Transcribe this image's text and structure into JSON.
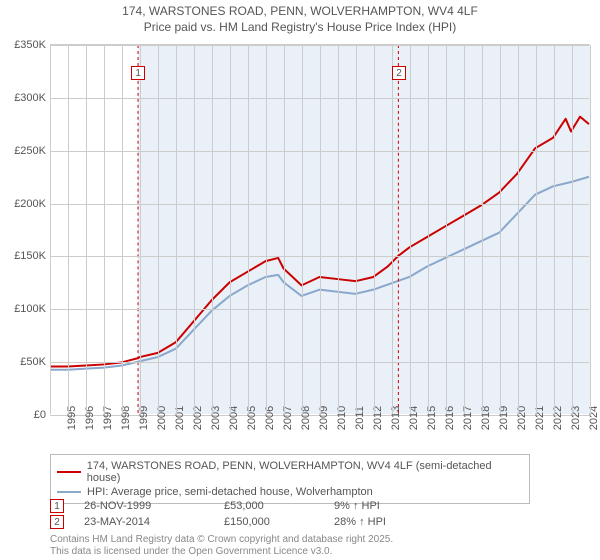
{
  "title_line1": "174, WARSTONES ROAD, PENN, WOLVERHAMPTON, WV4 4LF",
  "title_line2": "Price paid vs. HM Land Registry's House Price Index (HPI)",
  "chart": {
    "type": "line",
    "background_color": "#ffffff",
    "shade_color": "#eaf0f8",
    "grid_color": "#cccccc",
    "font_size": 11,
    "x": {
      "min": 1995,
      "max": 2025,
      "tick_step": 1
    },
    "y": {
      "min": 0,
      "max": 350000,
      "tick_step": 50000,
      "prefix": "£",
      "suffix": "K",
      "divisor": 1000
    },
    "shade_from_year": 1999.9,
    "series": [
      {
        "name": "174, WARSTONES ROAD, PENN, WOLVERHAMPTON, WV4 4LF (semi-detached house)",
        "color": "#cc0000",
        "width": 2,
        "points": [
          [
            1995,
            45000
          ],
          [
            1996,
            45000
          ],
          [
            1997,
            46000
          ],
          [
            1998,
            47000
          ],
          [
            1999,
            49000
          ],
          [
            1999.9,
            53000
          ],
          [
            2000,
            54000
          ],
          [
            2001,
            58000
          ],
          [
            2002,
            68000
          ],
          [
            2003,
            88000
          ],
          [
            2004,
            108000
          ],
          [
            2005,
            125000
          ],
          [
            2006,
            135000
          ],
          [
            2007,
            145000
          ],
          [
            2007.7,
            148000
          ],
          [
            2008,
            138000
          ],
          [
            2009,
            122000
          ],
          [
            2010,
            130000
          ],
          [
            2011,
            128000
          ],
          [
            2012,
            126000
          ],
          [
            2013,
            130000
          ],
          [
            2013.8,
            140000
          ],
          [
            2014.39,
            150000
          ],
          [
            2015,
            158000
          ],
          [
            2016,
            168000
          ],
          [
            2017,
            178000
          ],
          [
            2018,
            188000
          ],
          [
            2019,
            198000
          ],
          [
            2020,
            210000
          ],
          [
            2021,
            228000
          ],
          [
            2022,
            252000
          ],
          [
            2023,
            262000
          ],
          [
            2023.7,
            280000
          ],
          [
            2024,
            268000
          ],
          [
            2024.5,
            282000
          ],
          [
            2025,
            275000
          ]
        ]
      },
      {
        "name": "HPI: Average price, semi-detached house, Wolverhampton",
        "color": "#8aa7cc",
        "width": 2,
        "points": [
          [
            1995,
            42000
          ],
          [
            1996,
            42000
          ],
          [
            1997,
            43000
          ],
          [
            1998,
            44000
          ],
          [
            1999,
            46000
          ],
          [
            2000,
            50000
          ],
          [
            2001,
            54000
          ],
          [
            2002,
            62000
          ],
          [
            2003,
            80000
          ],
          [
            2004,
            98000
          ],
          [
            2005,
            112000
          ],
          [
            2006,
            122000
          ],
          [
            2007,
            130000
          ],
          [
            2007.7,
            132000
          ],
          [
            2008,
            125000
          ],
          [
            2009,
            112000
          ],
          [
            2010,
            118000
          ],
          [
            2011,
            116000
          ],
          [
            2012,
            114000
          ],
          [
            2013,
            118000
          ],
          [
            2014,
            124000
          ],
          [
            2015,
            130000
          ],
          [
            2016,
            140000
          ],
          [
            2017,
            148000
          ],
          [
            2018,
            156000
          ],
          [
            2019,
            164000
          ],
          [
            2020,
            172000
          ],
          [
            2021,
            190000
          ],
          [
            2022,
            208000
          ],
          [
            2023,
            216000
          ],
          [
            2024,
            220000
          ],
          [
            2025,
            225000
          ]
        ]
      }
    ],
    "sale_markers": [
      {
        "n": "1",
        "year": 1999.9,
        "color": "#cc0000"
      },
      {
        "n": "2",
        "year": 2014.39,
        "color": "#cc0000"
      }
    ]
  },
  "legend": {
    "border_color": "#bbbbbb"
  },
  "sales": [
    {
      "n": "1",
      "marker_color": "#cc0000",
      "date": "26-NOV-1999",
      "price": "£53,000",
      "delta": "9% ↑ HPI"
    },
    {
      "n": "2",
      "marker_color": "#cc0000",
      "date": "23-MAY-2014",
      "price": "£150,000",
      "delta": "28% ↑ HPI"
    }
  ],
  "footer_line1": "Contains HM Land Registry data © Crown copyright and database right 2025.",
  "footer_line2": "This data is licensed under the Open Government Licence v3.0."
}
